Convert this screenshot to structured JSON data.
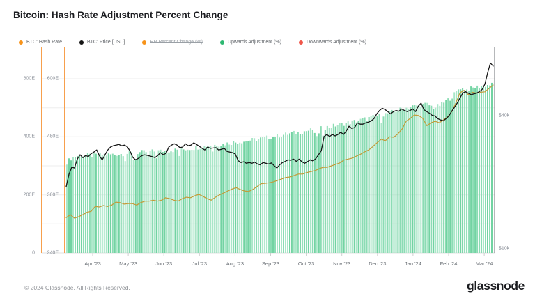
{
  "page": {
    "title": "Bitcoin: Hash Rate Adjustment Percent Change",
    "footer": {
      "copyright": "© 2024 Glassnode. All Rights Reserved.",
      "brand": "glassnode"
    }
  },
  "colors": {
    "bitcoin_orange": "#f7931a",
    "price_black": "#151515",
    "hash_line_gold": "#c49a37",
    "bar_green_dark": "#72d3a2",
    "bar_green_mid": "#8bdcb4",
    "bar_green_light": "#a9e7c8",
    "legend_green": "#2eb872",
    "legend_red": "#f0564a",
    "axis_orange_line": "#f7a04d",
    "axis_right_line": "#6e7176",
    "gridline": "#ededed",
    "baseline": "#e2e2e2"
  },
  "legend": {
    "items": [
      {
        "label": "BTC: Hash Rate",
        "color": "#f7931a",
        "disabled": false
      },
      {
        "label": "BTC: Price [USD]",
        "color": "#151515",
        "disabled": false
      },
      {
        "label": "HR Percent Change (%)",
        "color": "#f7931a",
        "disabled": true
      },
      {
        "label": "Upwards Adjustment (%)",
        "color": "#2eb872",
        "disabled": false
      },
      {
        "label": "Downwards Adjustment (%)",
        "color": "#f0564a",
        "disabled": false
      }
    ]
  },
  "chart_data": {
    "type": "mixed",
    "title": "Bitcoin: Hash Rate Adjustment Percent Change",
    "x_axis": {
      "labels": [
        "Apr '23",
        "May '23",
        "Jun '23",
        "Jul '23",
        "Aug '23",
        "Sep '23",
        "Oct '23",
        "Nov '23",
        "Dec '23",
        "Jan '24",
        "Feb '24",
        "Mar '24"
      ],
      "range_note": "daily data, approx Mar 10 2023 to Mar 10 2024"
    },
    "y_axis_outer_left": {
      "unit": "EH/s",
      "tick_labels": [
        "0",
        "200E",
        "400E",
        "600E"
      ],
      "range": [
        0,
        600
      ]
    },
    "y_axis_inner_left": {
      "unit": "EH/s",
      "tick_labels": [
        "240E",
        "360E",
        "480E",
        "600E"
      ],
      "range": [
        240,
        600
      ]
    },
    "y_axis_right": {
      "unit": "USD",
      "tick_labels": [
        "$10k",
        "$40k"
      ],
      "scale": "log"
    },
    "series": [
      {
        "name": "Upwards Adjustment (%)",
        "type": "bar",
        "axis": "outer_left",
        "note": "dense daily green bars; tops estimated in EH/s on 0-600E axis; envelope anchor points [fraction_of_x_range, EH/s]",
        "envelope": [
          [
            0,
            312
          ],
          [
            0.01,
            326
          ],
          [
            0.024,
            334
          ],
          [
            0.049,
            336
          ],
          [
            0.073,
            337
          ],
          [
            0.106,
            339
          ],
          [
            0.139,
            342
          ],
          [
            0.171,
            346
          ],
          [
            0.204,
            350
          ],
          [
            0.237,
            352
          ],
          [
            0.269,
            356
          ],
          [
            0.302,
            362
          ],
          [
            0.334,
            370
          ],
          [
            0.367,
            375
          ],
          [
            0.4,
            382
          ],
          [
            0.432,
            388
          ],
          [
            0.465,
            396
          ],
          [
            0.498,
            404
          ],
          [
            0.53,
            412
          ],
          [
            0.563,
            420
          ],
          [
            0.595,
            428
          ],
          [
            0.628,
            438
          ],
          [
            0.661,
            448
          ],
          [
            0.693,
            458
          ],
          [
            0.726,
            470
          ],
          [
            0.75,
            478
          ],
          [
            0.775,
            490
          ],
          [
            0.799,
            500
          ],
          [
            0.824,
            508
          ],
          [
            0.848,
            512
          ],
          [
            0.865,
            500
          ],
          [
            0.881,
            512
          ],
          [
            0.905,
            535
          ],
          [
            0.925,
            570
          ],
          [
            0.941,
            562
          ],
          [
            0.957,
            568
          ],
          [
            0.974,
            575
          ],
          [
            1,
            580
          ]
        ],
        "bar_count": 205,
        "jitter_eh": 8
      },
      {
        "name": "BTC: Hash Rate",
        "type": "line",
        "axis": "inner_left",
        "unit": "EH/s",
        "note": "values uniformly spaced across x range",
        "values": [
          313,
          319,
          312,
          315,
          319,
          324,
          326,
          336,
          335,
          338,
          336,
          339,
          345,
          344,
          341,
          342,
          342,
          339,
          344,
          347,
          347,
          349,
          347,
          349,
          354,
          352,
          349,
          347,
          352,
          355,
          354,
          358,
          361,
          357,
          352,
          349,
          355,
          360,
          364,
          368,
          372,
          375,
          371,
          368,
          367,
          371,
          377,
          383,
          384,
          385,
          387,
          390,
          393,
          396,
          397,
          400,
          403,
          403,
          406,
          408,
          410,
          414,
          417,
          417,
          420,
          423,
          426,
          432,
          434,
          436,
          440,
          444,
          449,
          453,
          460,
          468,
          475,
          472,
          480,
          479,
          486,
          496,
          512,
          518,
          525,
          524,
          518,
          503,
          509,
          512,
          509,
          515,
          521,
          532,
          550,
          571,
          576,
          567,
          572,
          570,
          572,
          573,
          580,
          587
        ]
      },
      {
        "name": "BTC: Price [USD]",
        "type": "line",
        "axis": "right",
        "unit": "USD (thousands)",
        "note": "values uniformly spaced across x range",
        "values": [
          19.8,
          22.5,
          24.2,
          24.0,
          26.3,
          27.5,
          26.7,
          27.3,
          27.0,
          27.8,
          28.3,
          28.9,
          27.2,
          26.1,
          27.5,
          28.9,
          29.8,
          30.2,
          30.4,
          30.6,
          30.2,
          30.4,
          29.9,
          28.6,
          26.8,
          26.1,
          26.5,
          27.1,
          27.5,
          27.4,
          27.2,
          27.0,
          26.7,
          27.3,
          28.1,
          27.5,
          27.9,
          29.8,
          30.4,
          30.8,
          30.4,
          29.6,
          29.8,
          30.8,
          30.2,
          30.4,
          31.1,
          30.6,
          30.0,
          29.4,
          28.9,
          29.8,
          29.4,
          29.5,
          29.6,
          28.9,
          29.1,
          29.4,
          28.5,
          28.3,
          28.1,
          27.7,
          25.9,
          25.4,
          25.6,
          25.2,
          25.4,
          25.2,
          25.5,
          25.0,
          24.8,
          25.4,
          25.2,
          25.0,
          25.3,
          24.6,
          24.0,
          24.8,
          25.4,
          25.7,
          26.1,
          26.0,
          26.3,
          25.7,
          26.3,
          25.6,
          25.2,
          25.6,
          26.1,
          25.8,
          26.4,
          27.5,
          28.7,
          33.2,
          33.9,
          33.2,
          33.9,
          33.4,
          33.9,
          34.7,
          33.9,
          35.1,
          36.9,
          36.1,
          36.4,
          38.2,
          37.7,
          37.7,
          38.2,
          38.5,
          39.0,
          39.9,
          41.9,
          43.4,
          44.4,
          43.8,
          42.9,
          41.9,
          42.9,
          43.4,
          43.1,
          44.1,
          43.4,
          42.9,
          43.4,
          44.1,
          42.9,
          45.4,
          46.8,
          43.8,
          42.9,
          42.2,
          41.3,
          41.0,
          39.9,
          39.4,
          39.0,
          39.9,
          41.0,
          43.0,
          44.8,
          46.8,
          49.3,
          51.9,
          52.7,
          51.9,
          51.1,
          51.5,
          51.9,
          52.7,
          53.9,
          57.0,
          64.0,
          70.8,
          68.6
        ]
      },
      {
        "name": "HR Percent Change (%)",
        "type": "line",
        "axis": "hidden",
        "note": "legend item disabled (struck through) - series not drawn",
        "values": []
      },
      {
        "name": "Downwards Adjustment (%)",
        "type": "bar",
        "axis": "hidden",
        "note": "no visible red bars in view",
        "values": []
      }
    ]
  }
}
